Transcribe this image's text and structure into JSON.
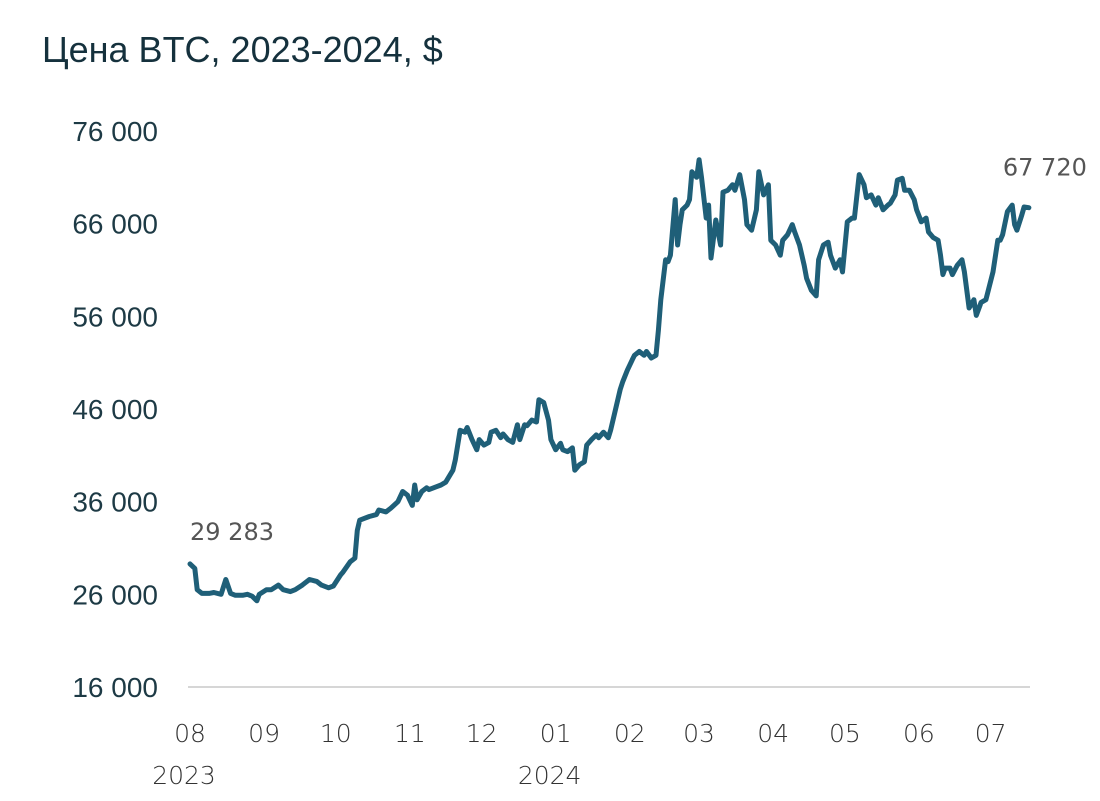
{
  "chart_data": {
    "type": "line",
    "title": "Цена BTC, 2023-2024, $",
    "xlabel": "",
    "ylabel": "",
    "ylim": [
      16000,
      76000
    ],
    "yticks": [
      16000,
      26000,
      36000,
      46000,
      56000,
      66000,
      76000
    ],
    "ytick_labels": [
      "16 000",
      "26 000",
      "36 000",
      "46 000",
      "56 000",
      "66 000",
      "76 000"
    ],
    "x_unit": "days since 2023-08-01",
    "xlim": [
      0,
      351
    ],
    "xticks": [
      {
        "day": 0,
        "label": "08",
        "year": "2023"
      },
      {
        "day": 31,
        "label": "09"
      },
      {
        "day": 61,
        "label": "10"
      },
      {
        "day": 92,
        "label": "11"
      },
      {
        "day": 122,
        "label": "12"
      },
      {
        "day": 153,
        "label": "01",
        "year": "2024"
      },
      {
        "day": 184,
        "label": "02"
      },
      {
        "day": 213,
        "label": "03"
      },
      {
        "day": 244,
        "label": "04"
      },
      {
        "day": 274,
        "label": "05"
      },
      {
        "day": 305,
        "label": "06"
      },
      {
        "day": 335,
        "label": "07"
      }
    ],
    "grid": false,
    "color": "#1f5f78",
    "series": [
      {
        "name": "BTC",
        "x": [
          0,
          2,
          3,
          5,
          8,
          10,
          13,
          15,
          17,
          19,
          22,
          24,
          26,
          28,
          29,
          32,
          34,
          37,
          39,
          42,
          44,
          47,
          48,
          50,
          53,
          55,
          58,
          60,
          63,
          64,
          67,
          69,
          70,
          71,
          73,
          75,
          78,
          79,
          82,
          84,
          87,
          89,
          91,
          93,
          94,
          95,
          97,
          99,
          100,
          103,
          105,
          107,
          110,
          111,
          113,
          115,
          116,
          118,
          120,
          121,
          123,
          125,
          126,
          128,
          130,
          131,
          133,
          135,
          137,
          138,
          140,
          141,
          143,
          145,
          146,
          148,
          150,
          151,
          153,
          155,
          156,
          158,
          160,
          161,
          163,
          165,
          166,
          168,
          170,
          171,
          173,
          175,
          176,
          178,
          180,
          181,
          183,
          185,
          186,
          188,
          190,
          191,
          193,
          195,
          196,
          197,
          199,
          200,
          201,
          203,
          204,
          205,
          206,
          208,
          209,
          210,
          212,
          213,
          214,
          216,
          217,
          218,
          220,
          222,
          223,
          225,
          227,
          228,
          230,
          232,
          233,
          235,
          237,
          238,
          240,
          242,
          243,
          245,
          247,
          248,
          250,
          252,
          253,
          255,
          257,
          258,
          260,
          262,
          263,
          265,
          267,
          268,
          270,
          272,
          273,
          275,
          277,
          278,
          280,
          282,
          283,
          285,
          287,
          288,
          290,
          292,
          293,
          295,
          296,
          298,
          299,
          301,
          303,
          304,
          306,
          308,
          309,
          311,
          313,
          314,
          315,
          316,
          318,
          319,
          321,
          323,
          324,
          326,
          328,
          329,
          331,
          333,
          334,
          336,
          338,
          339,
          340,
          342,
          344,
          345,
          346,
          348,
          349,
          351
        ],
        "values": [
          29283,
          28800,
          26500,
          26100,
          26100,
          26200,
          26000,
          27600,
          26100,
          25900,
          25900,
          26000,
          25800,
          25300,
          26000,
          26500,
          26500,
          27000,
          26500,
          26300,
          26500,
          27000,
          27200,
          27600,
          27400,
          27000,
          26700,
          26900,
          28100,
          28400,
          29500,
          29900,
          32900,
          34000,
          34200,
          34400,
          34600,
          35100,
          34900,
          35300,
          36000,
          37100,
          36700,
          35600,
          37800,
          36200,
          37100,
          37500,
          37300,
          37600,
          37800,
          38100,
          39400,
          40500,
          43700,
          43500,
          44000,
          42700,
          41600,
          42700,
          42100,
          42400,
          43500,
          43700,
          42900,
          43300,
          42700,
          42400,
          44300,
          42700,
          44300,
          44200,
          44800,
          44600,
          47000,
          46700,
          44800,
          42700,
          41600,
          42300,
          41600,
          41400,
          41800,
          39400,
          40000,
          40300,
          42100,
          42700,
          43200,
          42900,
          43500,
          42900,
          43700,
          45900,
          48100,
          48900,
          50200,
          51300,
          51800,
          52200,
          51800,
          52200,
          51500,
          51800,
          54500,
          57800,
          62100,
          61900,
          62600,
          68600,
          63700,
          65900,
          67500,
          68000,
          68600,
          71600,
          71000,
          72900,
          71000,
          66600,
          68000,
          62300,
          66400,
          63700,
          69400,
          69600,
          70200,
          69600,
          71300,
          68600,
          65900,
          65300,
          67500,
          71600,
          69100,
          70200,
          64200,
          63700,
          62600,
          64200,
          64800,
          65900,
          65100,
          63700,
          61500,
          60100,
          58800,
          58200,
          62100,
          63700,
          64000,
          62600,
          61200,
          62100,
          60800,
          66200,
          66600,
          66600,
          71300,
          70200,
          68800,
          69100,
          68000,
          68800,
          67500,
          68000,
          68200,
          69100,
          70700,
          70900,
          69600,
          69600,
          68600,
          67500,
          66200,
          66600,
          65100,
          64500,
          64200,
          62600,
          60500,
          61200,
          61200,
          60500,
          61500,
          62100,
          60800,
          56900,
          57800,
          56100,
          57500,
          57800,
          58800,
          60800,
          64200,
          64200,
          64800,
          67300,
          68000,
          65900,
          65300,
          66900,
          67800,
          67720
        ]
      }
    ],
    "annotations": [
      {
        "text": "29 283",
        "day": 0,
        "value": 29283
      },
      {
        "text": "67 720",
        "day": 351,
        "value": 67720
      }
    ]
  }
}
